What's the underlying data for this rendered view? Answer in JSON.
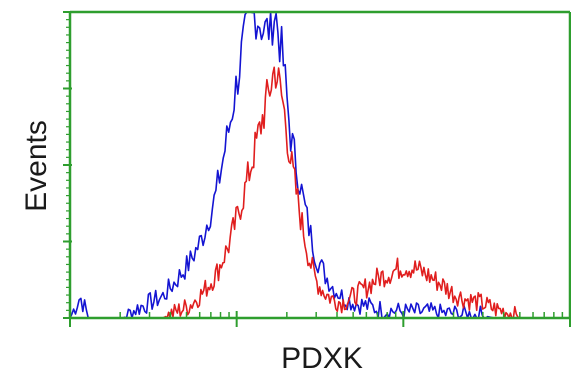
{
  "chart_data": {
    "type": "line",
    "xlabel": "PDXK",
    "ylabel": "Events",
    "xscale": "log",
    "grid": false,
    "legend": "none",
    "colors": {
      "axis": "#2e9e2e",
      "blue_series": "#1414d2",
      "red_series": "#e01e1e"
    },
    "series": [
      {
        "color": "#1414d2",
        "x": [
          1.0,
          1.15,
          1.3,
          1.5,
          1.8,
          2.1,
          2.5,
          3.0,
          3.6,
          4.3,
          5.2,
          6.2,
          7.5,
          9,
          11,
          13,
          15,
          17,
          19,
          21,
          24,
          27,
          30,
          34,
          38,
          43,
          50,
          60,
          70,
          85,
          100,
          120,
          140,
          170,
          200,
          240,
          290,
          350,
          420,
          500,
          600,
          700
        ],
        "y": [
          0.0,
          0.07,
          0.0,
          0.0,
          0.0,
          0.0,
          0.03,
          0.05,
          0.07,
          0.12,
          0.18,
          0.26,
          0.4,
          0.62,
          0.9,
          1.0,
          0.93,
          1.0,
          0.84,
          0.6,
          0.44,
          0.3,
          0.2,
          0.14,
          0.1,
          0.07,
          0.05,
          0.04,
          0.03,
          0.025,
          0.02,
          0.02,
          0.02,
          0.015,
          0.015,
          0.01,
          0.01,
          0.0,
          0.0,
          0.0,
          0.0,
          0.0
        ]
      },
      {
        "color": "#e01e1e",
        "x": [
          3.6,
          4.3,
          5.2,
          6.2,
          7.5,
          9,
          11,
          13,
          15,
          17,
          19,
          21,
          24,
          27,
          30,
          34,
          38,
          43,
          50,
          60,
          70,
          85,
          100,
          120,
          140,
          170,
          200,
          240,
          290,
          350,
          420,
          500,
          600,
          700
        ],
        "y": [
          0.0,
          0.02,
          0.04,
          0.08,
          0.14,
          0.24,
          0.4,
          0.56,
          0.7,
          0.82,
          0.7,
          0.52,
          0.34,
          0.2,
          0.12,
          0.08,
          0.06,
          0.05,
          0.07,
          0.1,
          0.13,
          0.15,
          0.17,
          0.16,
          0.14,
          0.11,
          0.08,
          0.06,
          0.05,
          0.03,
          0.02,
          0.0,
          0.0,
          0.0
        ]
      }
    ],
    "xlim": [
      1,
      1000
    ],
    "ylim": [
      0,
      1
    ],
    "x_major_ticks": [
      1,
      10,
      100,
      1000
    ],
    "y_ticks": [
      0,
      0.25,
      0.5,
      0.75,
      1
    ]
  }
}
